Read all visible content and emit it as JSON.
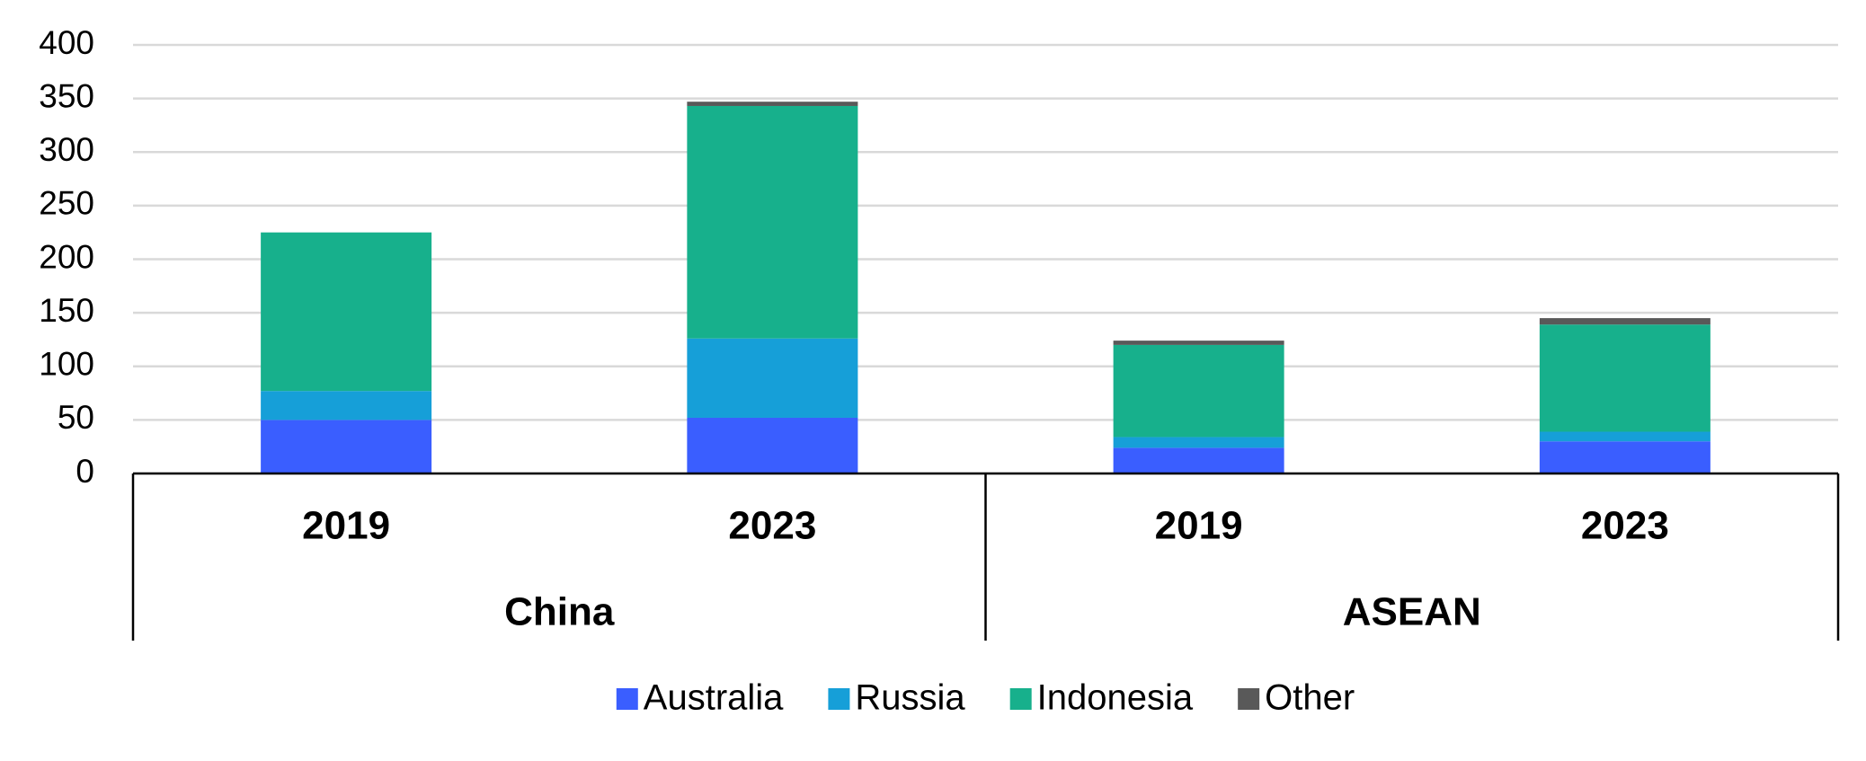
{
  "chart_data": {
    "type": "stacked_bar",
    "categories": [
      "2019",
      "2023",
      "2019",
      "2023"
    ],
    "groups": [
      "China",
      "ASEAN"
    ],
    "series": [
      {
        "name": "Australia",
        "color": "#3a5eff",
        "values": [
          50,
          52,
          24,
          30
        ]
      },
      {
        "name": "Russia",
        "color": "#169fd8",
        "values": [
          27,
          74,
          10,
          9
        ]
      },
      {
        "name": "Indonesia",
        "color": "#17b08c",
        "values": [
          148,
          217,
          86,
          100
        ]
      },
      {
        "name": "Other",
        "color": "#595959",
        "values": [
          0,
          4,
          4,
          6
        ]
      }
    ],
    "ylim": [
      0,
      400
    ],
    "yticks": [
      0,
      50,
      100,
      150,
      200,
      250,
      300,
      350,
      400
    ],
    "grid": true,
    "legend": "bottom"
  }
}
